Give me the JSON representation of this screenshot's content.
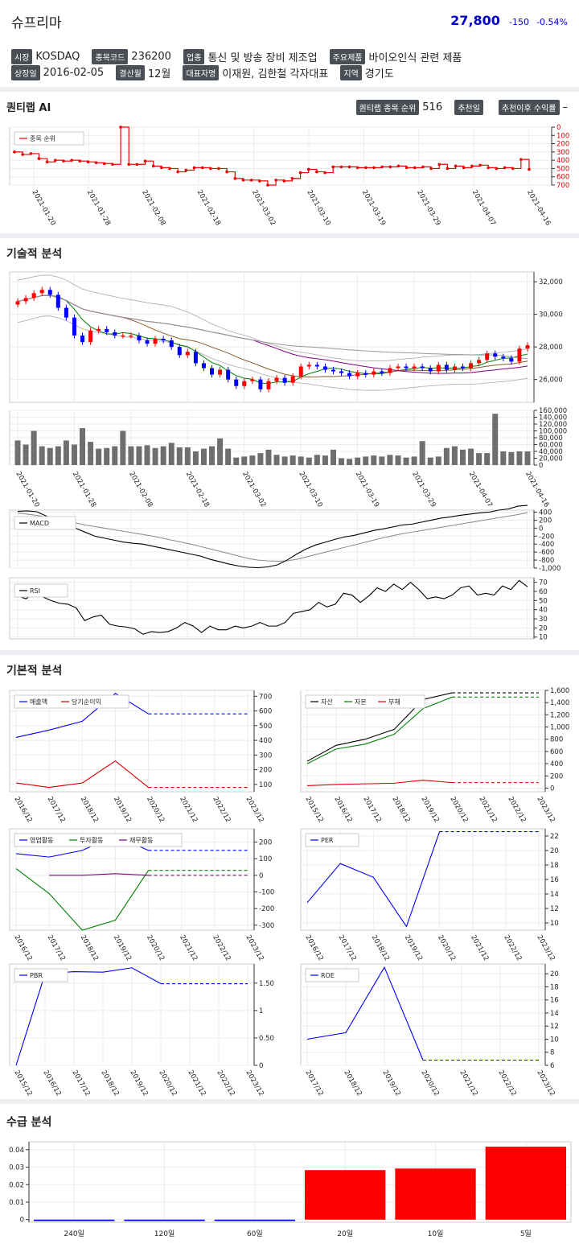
{
  "header": {
    "name": "슈프리마",
    "price": "27,800",
    "change": "-150",
    "change_pct": "-0.54%",
    "rows": [
      [
        {
          "tag": "시장",
          "value": "KOSDAQ"
        },
        {
          "tag": "종목코드",
          "value": "236200"
        },
        {
          "tag": "업종",
          "value": "통신 및 방송 장비 제조업"
        },
        {
          "tag": "주요제품",
          "value": "바이오인식 관련 제품"
        }
      ],
      [
        {
          "tag": "상장일",
          "value": "2016-02-05"
        },
        {
          "tag": "결산월",
          "value": "12월"
        },
        {
          "tag": "대표자명",
          "value": "이재원, 김한철 각자대표"
        },
        {
          "tag": "지역",
          "value": "경기도"
        }
      ]
    ]
  },
  "ai": {
    "title": "퀀티랩 AI",
    "rank_label": "퀀티랩 종목 순위",
    "rank_value": "516",
    "rec_date_label": "추천일",
    "rec_return_label": "추천이후 수익률",
    "rec_return_value": "–"
  },
  "sections": {
    "technical": "기술적 분석",
    "fundamental": "기본적 분석",
    "supply": "수급 분석"
  },
  "colors": {
    "up": "#ff0000",
    "down": "#0000ff",
    "price": "#0000cc"
  },
  "chart_data": [
    {
      "id": "rank",
      "type": "line",
      "legend": [
        "종목 순위"
      ],
      "x_ticks": [
        "2021-01-20",
        "2021-01-28",
        "2021-02-08",
        "2021-02-18",
        "2021-03-02",
        "2021-03-10",
        "2021-03-19",
        "2021-03-29",
        "2021-04-07",
        "2021-04-16"
      ],
      "y_ticks": [
        "0",
        "100",
        "200",
        "300",
        "400",
        "500",
        "600",
        "700"
      ],
      "ylim": [
        0,
        700
      ],
      "y_reversed": true,
      "values": [
        300,
        330,
        320,
        380,
        420,
        400,
        410,
        400,
        410,
        420,
        430,
        440,
        450,
        0,
        450,
        450,
        410,
        470,
        490,
        500,
        540,
        520,
        490,
        490,
        500,
        500,
        540,
        620,
        640,
        640,
        650,
        700,
        640,
        650,
        620,
        550,
        510,
        540,
        550,
        480,
        480,
        480,
        490,
        490,
        490,
        480,
        480,
        470,
        490,
        490,
        480,
        500,
        450,
        500,
        470,
        490,
        470,
        460,
        490,
        500,
        490,
        500,
        390,
        510
      ]
    },
    {
      "id": "candles",
      "type": "candlestick",
      "y_ticks": [
        "26,000",
        "28,000",
        "30,000",
        "32,000"
      ],
      "ylim": [
        24600,
        32600
      ],
      "x_ticks": [
        "2021-01-20",
        "2021-01-28",
        "2021-02-08",
        "2021-02-18",
        "2021-03-02",
        "2021-03-10",
        "2021-03-19",
        "2021-03-29",
        "2021-04-07",
        "2021-04-16"
      ],
      "close": [
        30800,
        31000,
        31300,
        31500,
        31200,
        30400,
        29800,
        28700,
        28300,
        29000,
        29100,
        28900,
        28700,
        28700,
        28700,
        28400,
        28200,
        28500,
        28400,
        28000,
        27500,
        27700,
        27000,
        26700,
        26300,
        26600,
        26000,
        25600,
        25900,
        26000,
        25400,
        25900,
        26100,
        25800,
        26200,
        26800,
        26900,
        26800,
        26600,
        26500,
        26400,
        26200,
        26400,
        26300,
        26500,
        26400,
        26700,
        26800,
        26700,
        26800,
        26700,
        26500,
        26900,
        26600,
        26800,
        26700,
        27000,
        27200,
        27600,
        27400,
        27300,
        27100,
        27900,
        28100
      ],
      "moving_averages": [
        {
          "name": "MA5",
          "color": "#008000"
        },
        {
          "name": "MA20",
          "color": "#8b5a2b"
        },
        {
          "name": "MA60",
          "color": "#800080"
        },
        {
          "name": "MA120",
          "color": "#999999"
        }
      ]
    },
    {
      "id": "volume",
      "type": "bar",
      "y_ticks": [
        "0",
        "20,000",
        "40,000",
        "60,000",
        "80,000",
        "100,000",
        "120,000",
        "140,000",
        "160,000"
      ],
      "ylim": [
        0,
        160000
      ],
      "values": [
        72000,
        60000,
        100000,
        55000,
        50000,
        55000,
        72000,
        60000,
        108000,
        68000,
        48000,
        50000,
        55000,
        100000,
        55000,
        55000,
        58000,
        50000,
        55000,
        65000,
        52000,
        52000,
        40000,
        48000,
        55000,
        78000,
        48000,
        22000,
        25000,
        28000,
        35000,
        45000,
        30000,
        25000,
        28000,
        25000,
        22000,
        30000,
        28000,
        45000,
        20000,
        18000,
        22000,
        25000,
        28000,
        25000,
        30000,
        28000,
        22000,
        25000,
        70000,
        22000,
        25000,
        50000,
        55000,
        45000,
        48000,
        35000,
        35000,
        150000,
        40000,
        38000,
        40000,
        40000
      ]
    },
    {
      "id": "macd",
      "type": "line",
      "legend": [
        "MACD"
      ],
      "y_ticks": [
        "-1,000",
        "-800",
        "-600",
        "-400",
        "-200",
        "0",
        "200",
        "400"
      ],
      "ylim": [
        -1000,
        450
      ],
      "series": [
        {
          "name": "MACD",
          "values": [
            420,
            430,
            410,
            300,
            200,
            100,
            0,
            -100,
            -200,
            -250,
            -300,
            -350,
            -380,
            -400,
            -450,
            -500,
            -550,
            -600,
            -650,
            -700,
            -780,
            -840,
            -900,
            -950,
            -980,
            -990,
            -970,
            -920,
            -800,
            -650,
            -520,
            -420,
            -350,
            -280,
            -220,
            -180,
            -120,
            -60,
            -20,
            30,
            80,
            100,
            150,
            200,
            250,
            280,
            320,
            350,
            380,
            400,
            450,
            480,
            550,
            570
          ]
        },
        {
          "name": "signal",
          "values": [
            380,
            350,
            320,
            280,
            230,
            180,
            130,
            80,
            40,
            0,
            -40,
            -80,
            -120,
            -160,
            -200,
            -250,
            -300,
            -350,
            -400,
            -460,
            -520,
            -580,
            -640,
            -700,
            -760,
            -800,
            -820,
            -830,
            -820,
            -780,
            -720,
            -660,
            -600,
            -540,
            -480,
            -420,
            -360,
            -300,
            -240,
            -190,
            -140,
            -100,
            -60,
            -20,
            20,
            60,
            100,
            140,
            180,
            220,
            260,
            300,
            340,
            390
          ]
        }
      ]
    },
    {
      "id": "rsi",
      "type": "line",
      "legend": [
        "RSI"
      ],
      "y_ticks": [
        "10",
        "20",
        "30",
        "40",
        "50",
        "60",
        "70"
      ],
      "ylim": [
        8,
        75
      ],
      "values": [
        55,
        52,
        58,
        54,
        50,
        47,
        46,
        42,
        28,
        32,
        34,
        24,
        22,
        21,
        19,
        13,
        16,
        15,
        16,
        20,
        26,
        22,
        15,
        22,
        18,
        18,
        22,
        20,
        22,
        26,
        22,
        22,
        26,
        36,
        38,
        40,
        48,
        43,
        46,
        58,
        56,
        48,
        55,
        64,
        60,
        68,
        62,
        70,
        62,
        52,
        54,
        52,
        56,
        64,
        66,
        56,
        58,
        56,
        66,
        62,
        72,
        65
      ]
    },
    {
      "id": "sales",
      "type": "line",
      "legend": [
        "매출액",
        "당기순이익"
      ],
      "categories": [
        "2016/12",
        "2017/12",
        "2018/12",
        "2019/12",
        "2020/12",
        "2021/12",
        "2022/12",
        "2023/12"
      ],
      "y_ticks": [
        "100",
        "200",
        "300",
        "400",
        "500",
        "600",
        "700"
      ],
      "ylim": [
        50,
        740
      ],
      "series": [
        {
          "name": "매출액",
          "color": "#0000ff",
          "values": [
            420,
            470,
            530,
            720,
            580,
            580,
            580,
            580
          ]
        },
        {
          "name": "당기순이익",
          "color": "#dd0000",
          "values": [
            110,
            80,
            110,
            260,
            80,
            80,
            80,
            80
          ]
        }
      ],
      "estimate_from_index": 4
    },
    {
      "id": "balance",
      "type": "line",
      "legend": [
        "자산",
        "자본",
        "부채"
      ],
      "categories": [
        "2015/12",
        "2016/12",
        "2017/12",
        "2018/12",
        "2019/12",
        "2020/12",
        "2021/12",
        "2022/12",
        "2023/12"
      ],
      "y_ticks": [
        "0",
        "200",
        "400",
        "600",
        "800",
        "1,000",
        "1,200",
        "1,400",
        "1,600"
      ],
      "ylim": [
        -60,
        1600
      ],
      "series": [
        {
          "name": "자산",
          "color": "#000000",
          "values": [
            440,
            700,
            800,
            960,
            1450,
            1560,
            1560,
            1560,
            1560
          ]
        },
        {
          "name": "자본",
          "color": "#008000",
          "values": [
            400,
            640,
            720,
            880,
            1300,
            1490,
            1490,
            1490,
            1490
          ]
        },
        {
          "name": "부채",
          "color": "#dd0000",
          "values": [
            40,
            60,
            70,
            80,
            130,
            90,
            90,
            90,
            90
          ]
        }
      ],
      "estimate_from_index": 5
    },
    {
      "id": "cashflow",
      "type": "line",
      "legend": [
        "영업활동",
        "투자활동",
        "재무활동"
      ],
      "categories": [
        "2016/12",
        "2017/12",
        "2018/12",
        "2019/12",
        "2020/12",
        "2021/12",
        "2022/12",
        "2023/12"
      ],
      "y_ticks": [
        "-300",
        "-200",
        "-100",
        "0",
        "100",
        "200"
      ],
      "ylim": [
        -330,
        280
      ],
      "series": [
        {
          "name": "영업활동",
          "color": "#0000ff",
          "values": [
            130,
            110,
            150,
            240,
            150,
            150,
            150,
            150
          ]
        },
        {
          "name": "투자활동",
          "color": "#008000",
          "values": [
            40,
            -110,
            -330,
            -270,
            30,
            30,
            30,
            30
          ]
        },
        {
          "name": "재무활동",
          "color": "#800080",
          "values": [
            null,
            0,
            0,
            10,
            0,
            0,
            0,
            0
          ]
        }
      ],
      "estimate_from_index": 4
    },
    {
      "id": "per",
      "type": "line",
      "legend": [
        "PER"
      ],
      "categories": [
        "2016/12",
        "2017/12",
        "2018/12",
        "2019/12",
        "2020/12",
        "2021/12",
        "2022/12",
        "2023/12"
      ],
      "y_ticks": [
        "10",
        "12",
        "14",
        "16",
        "18",
        "20",
        "22"
      ],
      "ylim": [
        9,
        23
      ],
      "series": [
        {
          "name": "PER",
          "color": "#0000ff",
          "values": [
            12.8,
            18.2,
            16.3,
            9.5,
            22.6,
            22.6,
            22.6,
            22.6
          ]
        }
      ],
      "estimate_from_index": 4
    },
    {
      "id": "pbr",
      "type": "line",
      "legend": [
        "PBR"
      ],
      "categories": [
        "2015/12",
        "2016/12",
        "2017/12",
        "2018/12",
        "2019/12",
        "2020/12",
        "2021/12",
        "2022/12",
        "2023/12"
      ],
      "y_ticks": [
        "0",
        "0.50",
        "1",
        "1.50"
      ],
      "ylim": [
        0,
        1.85
      ],
      "series": [
        {
          "name": "PBR",
          "color": "#0000ff",
          "values": [
            0,
            1.67,
            1.71,
            1.7,
            1.78,
            1.49,
            1.49,
            1.49,
            1.49
          ]
        }
      ],
      "estimate_from_index": 5
    },
    {
      "id": "roe",
      "type": "line",
      "legend": [
        "ROE"
      ],
      "categories": [
        "2017/12",
        "2018/12",
        "2019/12",
        "2020/12",
        "2021/12",
        "2022/12",
        "2023/12"
      ],
      "y_ticks": [
        "6",
        "8",
        "10",
        "12",
        "14",
        "16",
        "18",
        "20"
      ],
      "ylim": [
        6,
        21.5
      ],
      "series": [
        {
          "name": "ROE",
          "color": "#0000ff",
          "values": [
            10,
            11,
            21,
            6.8,
            6.8,
            6.8,
            6.8
          ]
        }
      ],
      "estimate_from_index": 3
    },
    {
      "id": "supply",
      "type": "bar",
      "categories": [
        "240일",
        "120일",
        "60일",
        "20일",
        "10일",
        "5일"
      ],
      "y_ticks": [
        "0",
        "0.01",
        "0.02",
        "0.03",
        "0.04"
      ],
      "ylim": [
        -0.0015,
        0.0445
      ],
      "values": [
        -0.0008,
        -0.0008,
        -0.0008,
        0.0283,
        0.0292,
        0.0417
      ]
    }
  ]
}
